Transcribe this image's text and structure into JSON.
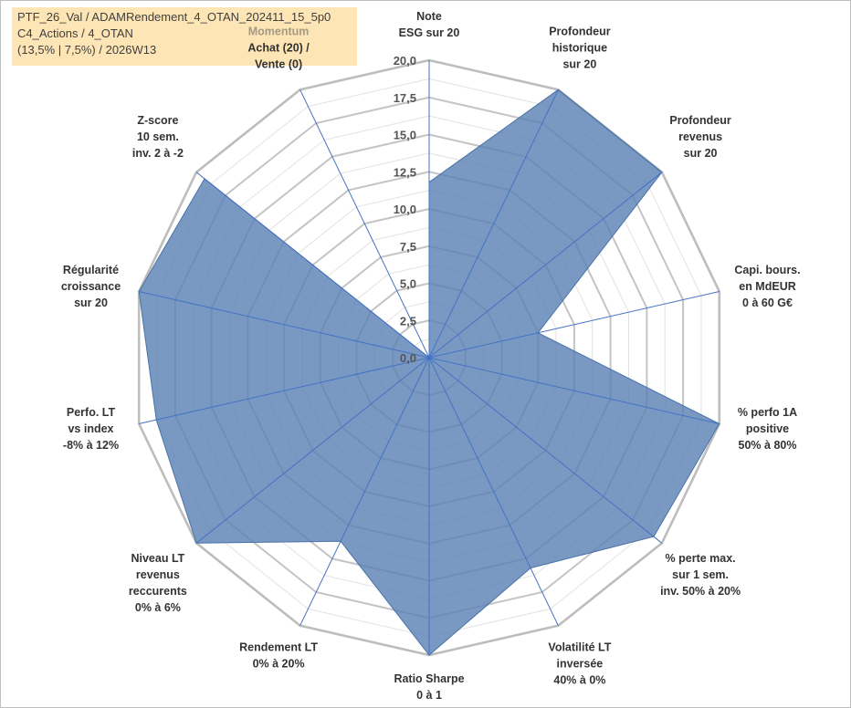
{
  "info": {
    "line1": "PTF_26_Val / ADAMRendement_4_OTAN_202411_15_5p0",
    "line2": "C4_Actions / 4_OTAN",
    "line3": "(13,5% | 7,5%) / 2026W13"
  },
  "chart_data": {
    "type": "radar",
    "title": "",
    "rmin": 0,
    "rmax": 20,
    "tick_step": 2.5,
    "tick_labels": [
      "0,0",
      "2,5",
      "5,0",
      "7,5",
      "10,0",
      "12,5",
      "15,0",
      "17,5",
      "20,0"
    ],
    "axes": [
      {
        "lines": [
          "Note",
          "ESG sur 20"
        ],
        "value": 11.8
      },
      {
        "lines": [
          "Profondeur",
          "historique",
          "sur 20"
        ],
        "value": 20
      },
      {
        "lines": [
          "Profondeur",
          "revenus",
          "sur 20"
        ],
        "value": 20
      },
      {
        "lines": [
          "Capi. bours.",
          "en MdEUR",
          "0 à 60 G€"
        ],
        "value": 7.5
      },
      {
        "lines": [
          "% perfo 1A",
          "positive",
          "50% à 80%"
        ],
        "value": 20
      },
      {
        "lines": [
          "% perte max.",
          "sur 1 sem.",
          "inv. 50% à 20%"
        ],
        "value": 19.3
      },
      {
        "lines": [
          "Volatilité LT",
          "inversée",
          "40% à 0%"
        ],
        "value": 15.7
      },
      {
        "lines": [
          "Ratio Sharpe",
          "0 à 1"
        ],
        "value": 20
      },
      {
        "lines": [
          "Rendement LT",
          "0% à 20%"
        ],
        "value": 13.7
      },
      {
        "lines": [
          "Niveau LT",
          "revenus",
          "reccurents",
          "0% à 6%"
        ],
        "value": 20
      },
      {
        "lines": [
          "Perfo. LT",
          "vs index",
          "-8% à 12%"
        ],
        "value": 18.8
      },
      {
        "lines": [
          "Régularité",
          "croissance",
          "sur 20"
        ],
        "value": 20
      },
      {
        "lines": [
          "Z-score",
          "10 sem.",
          "inv. 2 à -2"
        ],
        "value": 19.3
      },
      {
        "lines": [
          "Momentum",
          "Achat (20) /",
          "Vente (0)"
        ],
        "value": 0
      }
    ],
    "series": [
      {
        "name": "PTF",
        "color": "#5b82b4",
        "fill_opacity": 0.82
      }
    ],
    "grid_color": "#c4c4c4",
    "axis_color": "#4472c4"
  }
}
